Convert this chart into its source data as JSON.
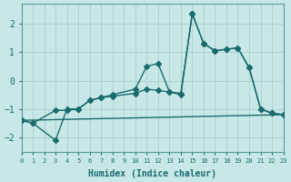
{
  "background_color": "#c8e8e8",
  "grid_color": "#a0c8c8",
  "line_color": "#1a6b6b",
  "marker_color": "#1a6b6b",
  "xlabel": "Humidex (Indice chaleur)",
  "xlim": [
    0,
    23
  ],
  "ylim": [
    -2.5,
    2.7
  ],
  "yticks": [
    -2,
    -1,
    0,
    1,
    2
  ],
  "xticks": [
    0,
    1,
    2,
    3,
    4,
    5,
    6,
    7,
    8,
    9,
    10,
    11,
    12,
    13,
    14,
    15,
    16,
    17,
    18,
    19,
    20,
    21,
    22,
    23
  ],
  "series1_x": [
    0,
    1,
    3,
    4,
    5,
    6,
    7,
    8,
    10,
    11,
    12,
    13,
    14,
    15,
    16,
    17,
    18,
    19,
    20,
    21,
    22,
    23
  ],
  "series1_y": [
    -1.4,
    -1.5,
    -2.1,
    -1.0,
    -1.0,
    -0.7,
    -0.6,
    -0.5,
    -0.3,
    0.5,
    0.6,
    -0.4,
    -0.5,
    2.35,
    1.3,
    1.05,
    1.1,
    1.15,
    0.45,
    -1.0,
    -1.15,
    -1.2
  ],
  "series2_x": [
    0,
    1,
    3,
    4,
    5,
    6,
    7,
    8,
    10,
    11,
    12,
    13,
    14,
    15,
    16,
    17,
    18,
    19,
    20,
    21,
    22,
    23
  ],
  "series2_y": [
    -1.4,
    -1.5,
    -1.05,
    -1.05,
    -1.0,
    -0.7,
    -0.6,
    -0.55,
    -0.45,
    -0.3,
    -0.35,
    -0.4,
    -0.45,
    2.35,
    1.3,
    1.05,
    1.1,
    1.15,
    0.45,
    -1.0,
    -1.15,
    -1.2
  ],
  "series3_x": [
    0,
    23
  ],
  "series3_y": [
    -1.4,
    -1.2
  ]
}
